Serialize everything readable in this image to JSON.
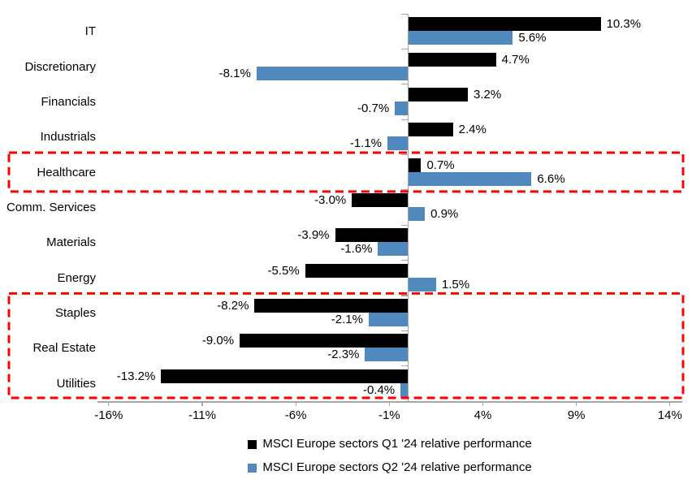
{
  "chart_data": {
    "type": "bar",
    "orientation": "horizontal",
    "title": "",
    "xlabel": "",
    "ylabel": "",
    "grid": false,
    "legend_position": "bottom-center",
    "categories": [
      "IT",
      "Discretionary",
      "Financials",
      "Industrials",
      "Healthcare",
      "Comm. Services",
      "Materials",
      "Energy",
      "Staples",
      "Real Estate",
      "Utilities"
    ],
    "series": [
      {
        "name": "MSCI Europe sectors Q1 '24 relative performance",
        "color": "#000000",
        "values": [
          10.3,
          4.7,
          3.2,
          2.4,
          0.7,
          -3.0,
          -3.9,
          -5.5,
          -8.2,
          -9.0,
          -13.2
        ],
        "labels": [
          "10.3%",
          "4.7%",
          "3.2%",
          "2.4%",
          "0.7%",
          "-3.0%",
          "-3.9%",
          "-5.5%",
          "-8.2%",
          "-9.0%",
          "-13.2%"
        ]
      },
      {
        "name": "MSCI Europe sectors Q2 '24 relative performance",
        "color": "#5089BE",
        "values": [
          5.6,
          -8.1,
          -0.7,
          -1.1,
          6.6,
          0.9,
          -1.6,
          1.5,
          -2.1,
          -2.3,
          -0.4
        ],
        "labels": [
          "5.6%",
          "-8.1%",
          "-0.7%",
          "-1.1%",
          "6.6%",
          "0.9%",
          "-1.6%",
          "1.5%",
          "-2.1%",
          "-2.3%",
          "-0.4%"
        ]
      }
    ],
    "xlim": [
      -16.6,
      14.66
    ],
    "xticks": {
      "values": [
        -16,
        -11,
        -6,
        -1,
        4,
        9,
        14
      ],
      "labels": [
        "-16%",
        "-11%",
        "-6%",
        "-1%",
        "4%",
        "9%",
        "14%"
      ]
    },
    "highlights": [
      {
        "categories": [
          "Healthcare"
        ],
        "color": "#FF0000"
      },
      {
        "categories": [
          "Staples",
          "Real Estate",
          "Utilities"
        ],
        "color": "#FF0000"
      }
    ],
    "axis_color": "#a6a6a6"
  }
}
